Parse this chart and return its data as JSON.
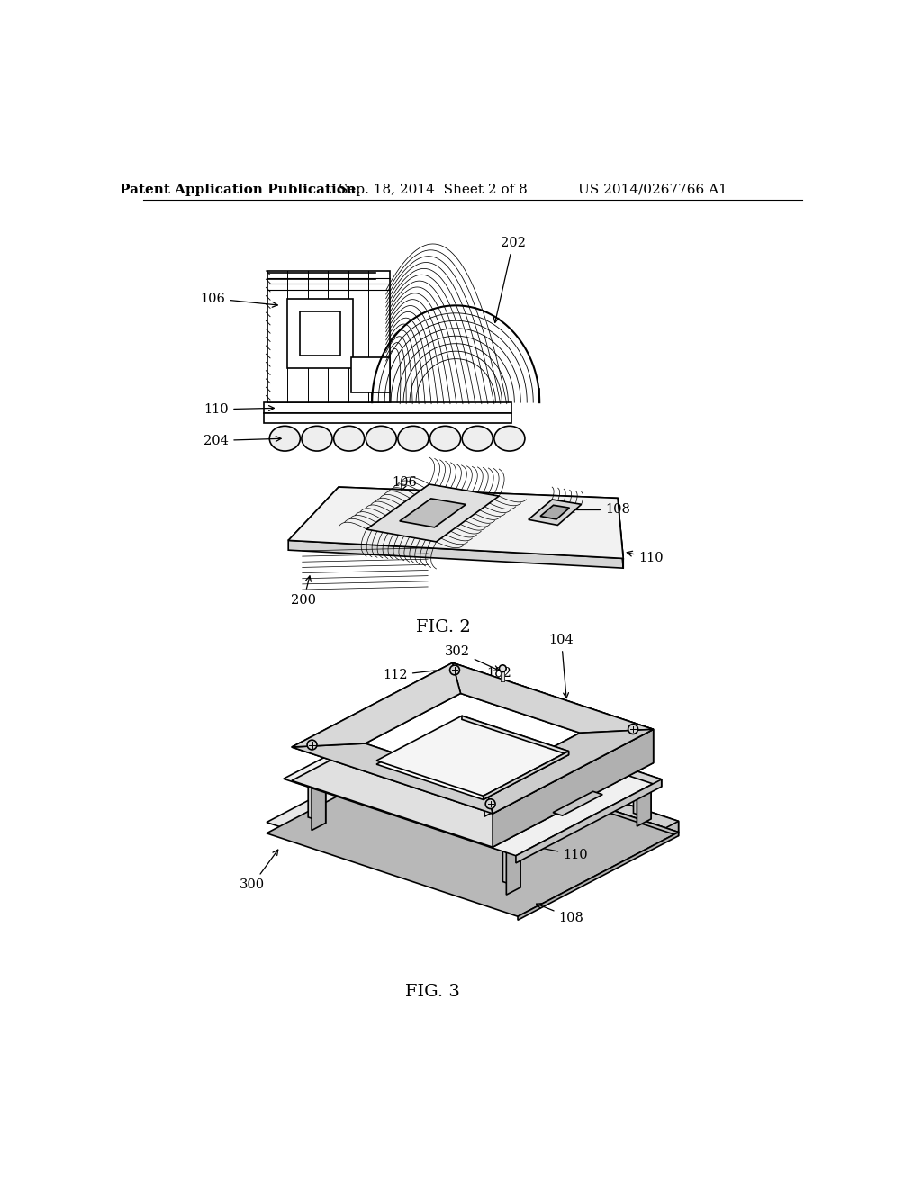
{
  "background_color": "#ffffff",
  "header_left": "Patent Application Publication",
  "header_center": "Sep. 18, 2014  Sheet 2 of 8",
  "header_right": "US 2014/0267766 A1",
  "fig2_label": "FIG. 2",
  "fig3_label": "FIG. 3",
  "line_color": "#000000",
  "header_font_size": 11,
  "fig_label_font_size": 14,
  "label_font_size": 10.5
}
